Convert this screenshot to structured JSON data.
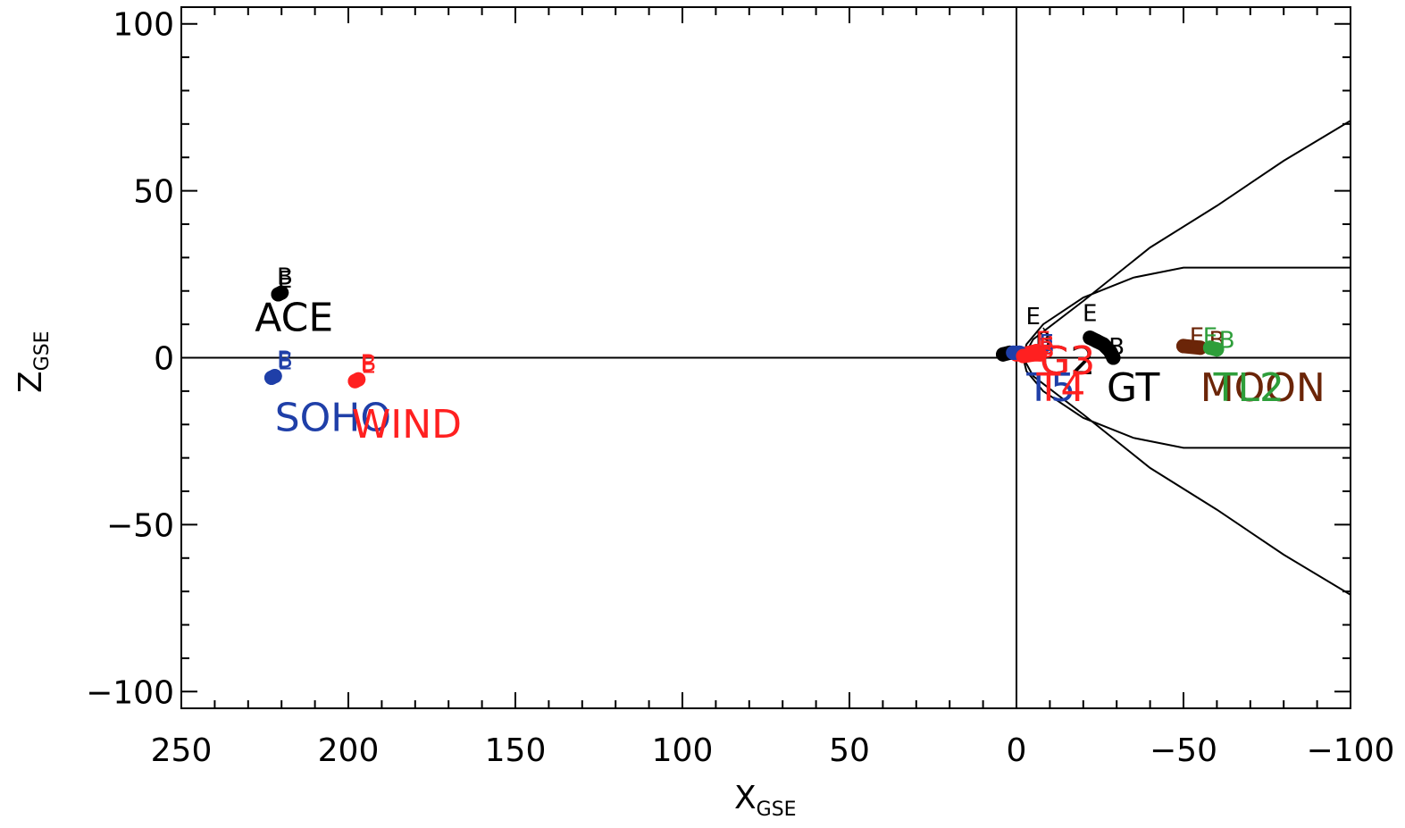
{
  "chart_data": {
    "type": "scatter",
    "x_axis": {
      "label_main": "X",
      "label_sub": "GSE",
      "range": [
        250,
        -100
      ],
      "tick_labels": [
        "250",
        "200",
        "150",
        "100",
        "50",
        "0",
        "−50",
        "−100"
      ],
      "tick_values": [
        250,
        200,
        150,
        100,
        50,
        0,
        -50,
        -100
      ],
      "minor_step": 10
    },
    "y_axis": {
      "label_main": "Z",
      "label_sub": "GSE",
      "range": [
        -105,
        105
      ],
      "tick_labels": [
        "100",
        "50",
        "0",
        "−50",
        "−100"
      ],
      "tick_values": [
        100,
        50,
        0,
        -50,
        -100
      ],
      "minor_step": 10
    },
    "reference_lines": [
      {
        "orientation": "horizontal",
        "value": 0
      },
      {
        "orientation": "vertical",
        "value": 0
      }
    ],
    "boundaries": {
      "bow_shock": [
        [
          -100,
          71
        ],
        [
          -80,
          59
        ],
        [
          -60,
          45.5
        ],
        [
          -40,
          33
        ],
        [
          -20,
          17
        ],
        [
          -5,
          5.5
        ],
        [
          -2,
          0
        ],
        [
          -5,
          -5.5
        ],
        [
          -20,
          -17
        ],
        [
          -40,
          -33
        ],
        [
          -60,
          -45.5
        ],
        [
          -80,
          -59
        ],
        [
          -100,
          -71
        ]
      ],
      "magnetopause": [
        [
          -100,
          27
        ],
        [
          -50,
          27
        ],
        [
          -35,
          24
        ],
        [
          -20,
          18
        ],
        [
          -8,
          10
        ],
        [
          -3,
          4
        ],
        [
          -2,
          0
        ],
        [
          -3,
          -4
        ],
        [
          -8,
          -10
        ],
        [
          -20,
          -18
        ],
        [
          -35,
          -24
        ],
        [
          -50,
          -27
        ],
        [
          -100,
          -27
        ]
      ]
    },
    "series": [
      {
        "name": "ACE",
        "color": "#000000",
        "track": [
          [
            221,
            19
          ],
          [
            220,
            19.5
          ]
        ],
        "begin_pos": [
          219,
          22
        ],
        "end_pos": [
          219,
          21
        ],
        "label_pos": [
          228,
          8
        ]
      },
      {
        "name": "SOHO",
        "color": "#1f3fa8",
        "track": [
          [
            223,
            -6
          ],
          [
            222,
            -5.5
          ]
        ],
        "begin_pos": [
          219,
          -3
        ],
        "end_pos": [
          219,
          -3.5
        ],
        "label_pos": [
          222,
          -22
        ]
      },
      {
        "name": "WIND",
        "color": "#ff2020",
        "track": [
          [
            198,
            -7
          ],
          [
            197,
            -6.5
          ]
        ],
        "begin_pos": [
          194,
          -4
        ],
        "end_pos": [
          194,
          -4.5
        ],
        "label_pos": [
          199,
          -24
        ]
      },
      {
        "name": "GT",
        "color": "#000000",
        "track": [
          [
            -22,
            6
          ],
          [
            -24,
            5
          ],
          [
            -26,
            4
          ],
          [
            -28,
            2
          ],
          [
            -29,
            0
          ]
        ],
        "begin_pos": [
          -30,
          1
        ],
        "end_pos": [
          -22,
          11
        ],
        "label_pos": [
          -27,
          -13
        ]
      },
      {
        "name": "G2",
        "color": "#000000",
        "track": [
          [
            2,
            1.5
          ],
          [
            4,
            1
          ]
        ],
        "begin_pos": [
          -8,
          3
        ],
        "end_pos": [
          -5,
          10
        ],
        "label_pos": [
          -7,
          -5
        ],
        "leader": [
          [
            -8,
            9
          ],
          [
            -10,
            6
          ]
        ]
      },
      {
        "name": "G3",
        "color": "#ff2020",
        "track": [
          [
            0,
            1
          ],
          [
            -2,
            1
          ],
          [
            -4,
            1.5
          ],
          [
            -6,
            2
          ]
        ],
        "begin_pos": [
          -9,
          2
        ],
        "end_pos": [
          -8,
          3
        ],
        "label_pos": [
          -7,
          -5
        ]
      },
      {
        "name": "T5",
        "color": "#1f3fa8",
        "track": [
          [
            1,
            1.5
          ],
          [
            -1,
            1.5
          ]
        ],
        "begin_pos": [
          -9,
          1
        ],
        "end_pos": [
          -9,
          2
        ],
        "label_pos": [
          -3,
          -13
        ]
      },
      {
        "name": "T4",
        "color": "#ff2020",
        "track": [
          [
            -2,
            0.5
          ],
          [
            -5,
            1
          ],
          [
            -7,
            1
          ]
        ],
        "begin_pos": [
          -9,
          0
        ],
        "end_pos": [
          -9,
          1
        ],
        "label_pos": [
          -6,
          -13
        ]
      },
      {
        "name": "MOON",
        "color": "#6b2508",
        "track": [
          [
            -50,
            3.5
          ],
          [
            -55,
            3
          ]
        ],
        "begin_pos": [
          -60,
          3
        ],
        "end_pos": [
          -54,
          4
        ],
        "label_pos": [
          -55,
          -13
        ]
      },
      {
        "name": "TL2",
        "color": "#2e9e3a",
        "track": [
          [
            -58,
            3
          ],
          [
            -60,
            2.5
          ]
        ],
        "begin_pos": [
          -63,
          3
        ],
        "end_pos": [
          -58,
          4
        ],
        "label_pos": [
          -59,
          -13
        ]
      }
    ],
    "marker_letters": {
      "begin": "B",
      "end": "E"
    },
    "grid": false,
    "legend": "none"
  }
}
